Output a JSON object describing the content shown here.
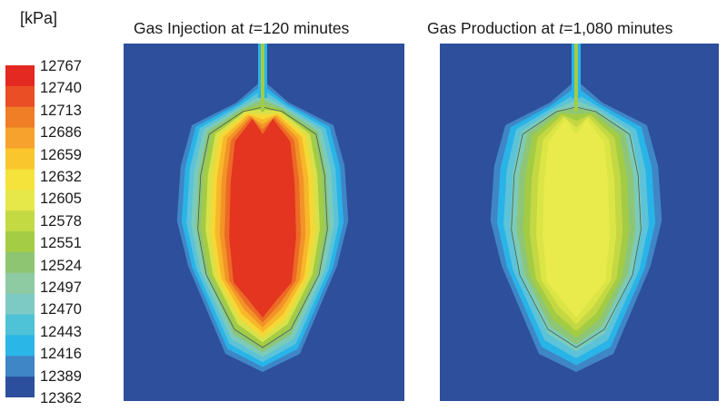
{
  "unit_label": "[kPa]",
  "legend": {
    "labels": [
      "12767",
      "12740",
      "12713",
      "12686",
      "12659",
      "12632",
      "12605",
      "12578",
      "12551",
      "12524",
      "12497",
      "12470",
      "12443",
      "12416",
      "12389",
      "12362"
    ],
    "colors": [
      "#e42822",
      "#ea4e25",
      "#f07e27",
      "#f6a22c",
      "#f9c62d",
      "#f5e23a",
      "#e6e84a",
      "#c3da42",
      "#a4cd45",
      "#8ec573",
      "#8ecaa2",
      "#7dcac4",
      "#4ec2d6",
      "#2ab6e6",
      "#3f86c7",
      "#2b4f9c"
    ]
  },
  "panels": [
    {
      "title_prefix": "Gas Injection at ",
      "title_var": "t",
      "title_suffix": "=120 minutes",
      "background_color": "#2d4f9c",
      "layers": [
        "#3f86c7",
        "#29b4e8",
        "#5cc3d8",
        "#7ccbba",
        "#8ec677",
        "#a3cc45",
        "#d9e14a",
        "#f5d835",
        "#f8b72b",
        "#f29327",
        "#ec6a25",
        "#e3351f"
      ]
    },
    {
      "title_prefix": "Gas Production at ",
      "title_var": "t",
      "title_suffix": "=1,080 minutes",
      "background_color": "#2d4f9c",
      "layers": [
        "#3f86c7",
        "#29b4e8",
        "#5cc3d8",
        "#7ccbba",
        "#8ec677",
        "#a3cc45",
        "#c4d843",
        "#dce546",
        "#e9ea4c"
      ]
    }
  ]
}
